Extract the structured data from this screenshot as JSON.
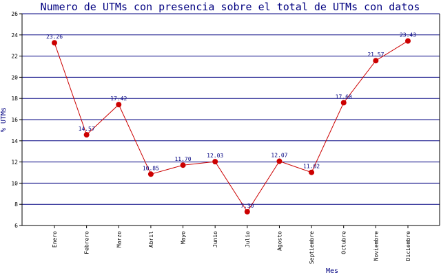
{
  "chart_data": {
    "type": "line",
    "title": "Numero de UTMs con presencia sobre el total de UTMs con datos",
    "xlabel": "Mes",
    "ylabel": "% UTMs",
    "categories": [
      "Enero",
      "Febrero",
      "Marzo",
      "Abril",
      "Mayo",
      "Junio",
      "Julio",
      "Agosto",
      "Septiembre",
      "Octubre",
      "Noviembre",
      "Diciembre"
    ],
    "values": [
      23.26,
      14.57,
      17.42,
      10.85,
      11.7,
      12.03,
      7.3,
      12.07,
      11.02,
      17.6,
      21.57,
      23.43
    ],
    "value_labels": [
      "23.26",
      "14.57",
      "17.42",
      "10.85",
      "11.70",
      "12.03",
      "7.30",
      "12.07",
      "11.02",
      "17.60",
      "21.57",
      "23.43"
    ],
    "ylim": [
      6,
      26
    ],
    "yticks": [
      6,
      8,
      10,
      12,
      14,
      16,
      18,
      20,
      22,
      24,
      26
    ],
    "grid": true,
    "legend": "none",
    "colors": {
      "line": "#cc0000",
      "marker": "#cc0000",
      "grid": "#000080",
      "axis": "#000000",
      "text": "#000080"
    }
  }
}
